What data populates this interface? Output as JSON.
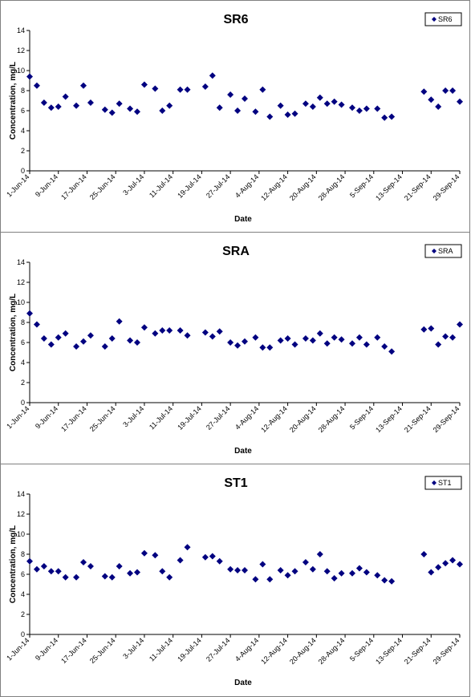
{
  "chart_data": [
    {
      "type": "scatter",
      "title": "SR6",
      "xlabel": "Date",
      "ylabel": "Concentration, mg/L",
      "ylim": [
        0,
        14
      ],
      "yticks": [
        0,
        2,
        4,
        6,
        8,
        10,
        12,
        14
      ],
      "x_range": [
        "2014-06-01",
        "2014-09-29"
      ],
      "xtick_labels": [
        "1-Jun-14",
        "9-Jun-14",
        "17-Jun-14",
        "25-Jun-14",
        "3-Jul-14",
        "11-Jul-14",
        "19-Jul-14",
        "27-Jul-14",
        "4-Aug-14",
        "12-Aug-14",
        "20-Aug-14",
        "28-Aug-14",
        "5-Sep-14",
        "13-Sep-14",
        "21-Sep-14",
        "29-Sep-14"
      ],
      "legend": "top-right",
      "series": [
        {
          "name": "SR6",
          "color": "#000080",
          "x": [
            "2014-06-01",
            "2014-06-03",
            "2014-06-05",
            "2014-06-07",
            "2014-06-09",
            "2014-06-11",
            "2014-06-14",
            "2014-06-16",
            "2014-06-18",
            "2014-06-22",
            "2014-06-24",
            "2014-06-26",
            "2014-06-29",
            "2014-07-01",
            "2014-07-03",
            "2014-07-06",
            "2014-07-08",
            "2014-07-10",
            "2014-07-13",
            "2014-07-15",
            "2014-07-20",
            "2014-07-22",
            "2014-07-24",
            "2014-07-27",
            "2014-07-29",
            "2014-07-31",
            "2014-08-03",
            "2014-08-05",
            "2014-08-07",
            "2014-08-10",
            "2014-08-12",
            "2014-08-14",
            "2014-08-17",
            "2014-08-19",
            "2014-08-21",
            "2014-08-23",
            "2014-08-25",
            "2014-08-27",
            "2014-08-30",
            "2014-09-01",
            "2014-09-03",
            "2014-09-06",
            "2014-09-08",
            "2014-09-10",
            "2014-09-19",
            "2014-09-21",
            "2014-09-23",
            "2014-09-25",
            "2014-09-27",
            "2014-09-29"
          ],
          "values": [
            9.4,
            8.5,
            6.8,
            6.3,
            6.4,
            7.4,
            6.5,
            8.5,
            6.8,
            6.1,
            5.8,
            6.7,
            6.2,
            5.9,
            8.6,
            8.2,
            6.0,
            6.5,
            8.1,
            8.1,
            8.4,
            9.5,
            6.3,
            7.6,
            6.0,
            7.2,
            5.9,
            8.1,
            5.4,
            6.5,
            5.6,
            5.7,
            6.7,
            6.4,
            7.3,
            6.7,
            6.9,
            6.6,
            6.3,
            6.0,
            6.2,
            6.2,
            5.3,
            5.4,
            7.9,
            7.1,
            6.4,
            8.0,
            8.0,
            6.9
          ]
        }
      ]
    },
    {
      "type": "scatter",
      "title": "SRA",
      "xlabel": "Date",
      "ylabel": "Concentration, mg/L",
      "ylim": [
        0,
        14
      ],
      "yticks": [
        0,
        2,
        4,
        6,
        8,
        10,
        12,
        14
      ],
      "x_range": [
        "2014-06-01",
        "2014-09-29"
      ],
      "xtick_labels": [
        "1-Jun-14",
        "9-Jun-14",
        "17-Jun-14",
        "25-Jun-14",
        "3-Jul-14",
        "11-Jul-14",
        "19-Jul-14",
        "27-Jul-14",
        "4-Aug-14",
        "12-Aug-14",
        "20-Aug-14",
        "28-Aug-14",
        "5-Sep-14",
        "13-Sep-14",
        "21-Sep-14",
        "29-Sep-14"
      ],
      "legend": "top-right",
      "series": [
        {
          "name": "SRA",
          "color": "#000080",
          "x": [
            "2014-06-01",
            "2014-06-03",
            "2014-06-05",
            "2014-06-07",
            "2014-06-09",
            "2014-06-11",
            "2014-06-14",
            "2014-06-16",
            "2014-06-18",
            "2014-06-22",
            "2014-06-24",
            "2014-06-26",
            "2014-06-29",
            "2014-07-01",
            "2014-07-03",
            "2014-07-06",
            "2014-07-08",
            "2014-07-10",
            "2014-07-13",
            "2014-07-15",
            "2014-07-20",
            "2014-07-22",
            "2014-07-24",
            "2014-07-27",
            "2014-07-29",
            "2014-07-31",
            "2014-08-03",
            "2014-08-05",
            "2014-08-07",
            "2014-08-10",
            "2014-08-12",
            "2014-08-14",
            "2014-08-17",
            "2014-08-19",
            "2014-08-21",
            "2014-08-23",
            "2014-08-25",
            "2014-08-27",
            "2014-08-30",
            "2014-09-01",
            "2014-09-03",
            "2014-09-06",
            "2014-09-08",
            "2014-09-10",
            "2014-09-19",
            "2014-09-21",
            "2014-09-23",
            "2014-09-25",
            "2014-09-27",
            "2014-09-29"
          ],
          "values": [
            8.9,
            7.8,
            6.4,
            5.8,
            6.5,
            6.9,
            5.6,
            6.1,
            6.7,
            5.6,
            6.4,
            8.1,
            6.2,
            6.0,
            7.5,
            6.9,
            7.2,
            7.2,
            7.2,
            6.7,
            7.0,
            6.6,
            7.1,
            6.0,
            5.7,
            6.1,
            6.5,
            5.5,
            5.5,
            6.2,
            6.4,
            5.8,
            6.4,
            6.2,
            6.9,
            5.9,
            6.5,
            6.3,
            5.9,
            6.5,
            5.8,
            6.5,
            5.6,
            5.1,
            7.3,
            7.4,
            5.8,
            6.6,
            6.5,
            7.8
          ]
        }
      ]
    },
    {
      "type": "scatter",
      "title": "ST1",
      "xlabel": "Date",
      "ylabel": "Concentration, mg/L",
      "ylim": [
        0,
        14
      ],
      "yticks": [
        0,
        2,
        4,
        6,
        8,
        10,
        12,
        14
      ],
      "x_range": [
        "2014-06-01",
        "2014-09-29"
      ],
      "xtick_labels": [
        "1-Jun-14",
        "9-Jun-14",
        "17-Jun-14",
        "25-Jun-14",
        "3-Jul-14",
        "11-Jul-14",
        "19-Jul-14",
        "27-Jul-14",
        "4-Aug-14",
        "12-Aug-14",
        "20-Aug-14",
        "28-Aug-14",
        "5-Sep-14",
        "13-Sep-14",
        "21-Sep-14",
        "29-Sep-14"
      ],
      "legend": "top-right",
      "series": [
        {
          "name": "ST1",
          "color": "#000080",
          "x": [
            "2014-06-01",
            "2014-06-03",
            "2014-06-05",
            "2014-06-07",
            "2014-06-09",
            "2014-06-11",
            "2014-06-14",
            "2014-06-16",
            "2014-06-18",
            "2014-06-22",
            "2014-06-24",
            "2014-06-26",
            "2014-06-29",
            "2014-07-01",
            "2014-07-03",
            "2014-07-06",
            "2014-07-08",
            "2014-07-10",
            "2014-07-13",
            "2014-07-15",
            "2014-07-20",
            "2014-07-22",
            "2014-07-24",
            "2014-07-27",
            "2014-07-29",
            "2014-07-31",
            "2014-08-03",
            "2014-08-05",
            "2014-08-07",
            "2014-08-10",
            "2014-08-12",
            "2014-08-14",
            "2014-08-17",
            "2014-08-19",
            "2014-08-21",
            "2014-08-23",
            "2014-08-25",
            "2014-08-27",
            "2014-08-30",
            "2014-09-01",
            "2014-09-03",
            "2014-09-06",
            "2014-09-08",
            "2014-09-10",
            "2014-09-19",
            "2014-09-21",
            "2014-09-23",
            "2014-09-25",
            "2014-09-27",
            "2014-09-29"
          ],
          "values": [
            7.3,
            6.5,
            6.8,
            6.3,
            6.3,
            5.7,
            5.7,
            7.2,
            6.8,
            5.8,
            5.7,
            6.8,
            6.1,
            6.2,
            8.1,
            7.9,
            6.3,
            5.7,
            7.4,
            8.7,
            7.7,
            7.8,
            7.3,
            6.5,
            6.4,
            6.4,
            5.5,
            7.0,
            5.5,
            6.4,
            5.9,
            6.3,
            7.2,
            6.5,
            8.0,
            6.3,
            5.6,
            6.1,
            6.1,
            6.6,
            6.2,
            5.9,
            5.4,
            5.3,
            8.0,
            6.2,
            6.7,
            7.1,
            7.4,
            7.0
          ]
        }
      ]
    }
  ]
}
